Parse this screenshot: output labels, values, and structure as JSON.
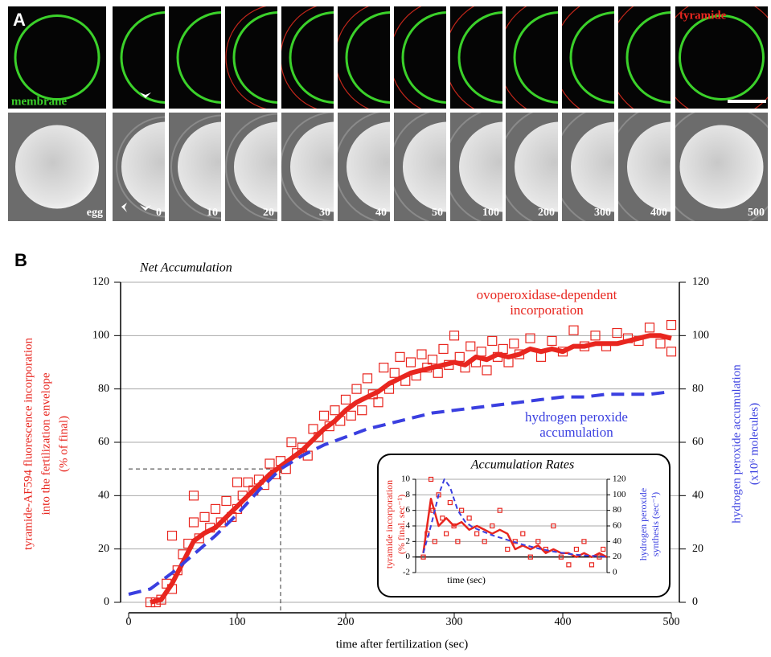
{
  "panel_a": {
    "label": "A",
    "membrane_label": "membrane",
    "tyramide_label": "tyramide",
    "time_labels": [
      "egg",
      "0",
      "10",
      "20",
      "30",
      "40",
      "50",
      "100",
      "200",
      "300",
      "400",
      "500"
    ]
  },
  "chart_data": [
    {
      "type": "line",
      "panel_label": "B",
      "title": "Net Accumulation",
      "xlabel": "time after fertilization (sec)",
      "ylabel": [
        "tyramide-AF594 fluorescence incorporation",
        "into the fertilization envelope",
        "(% of final)"
      ],
      "y2label": [
        "hydrogen peroxide accumulation",
        "(x10⁶ molecules)"
      ],
      "xlim": [
        0,
        500
      ],
      "xticks": [
        0,
        100,
        200,
        300,
        400,
        500
      ],
      "ylim": [
        0,
        120
      ],
      "yticks": [
        0,
        20,
        40,
        60,
        80,
        100,
        120
      ],
      "y2lim": [
        0,
        120
      ],
      "y2ticks": [
        0,
        20,
        40,
        60,
        80,
        100,
        120
      ],
      "grid": true,
      "reference": {
        "x": 140,
        "y": 50
      },
      "series": [
        {
          "type": "scatter",
          "color": "#e8261f",
          "x": [
            20,
            25,
            30,
            35,
            40,
            40,
            45,
            50,
            55,
            60,
            60,
            65,
            70,
            75,
            80,
            85,
            90,
            95,
            100,
            100,
            105,
            110,
            115,
            120,
            125,
            130,
            135,
            140,
            145,
            150,
            155,
            160,
            165,
            170,
            175,
            180,
            185,
            190,
            195,
            200,
            205,
            210,
            215,
            220,
            225,
            230,
            235,
            240,
            245,
            250,
            255,
            260,
            265,
            270,
            275,
            280,
            285,
            290,
            295,
            300,
            305,
            310,
            315,
            320,
            325,
            330,
            335,
            340,
            345,
            350,
            355,
            360,
            370,
            380,
            390,
            400,
            410,
            420,
            430,
            440,
            450,
            460,
            470,
            480,
            490,
            500,
            500
          ],
          "values": [
            0,
            0,
            1,
            7,
            25,
            5,
            12,
            18,
            22,
            40,
            30,
            24,
            32,
            28,
            35,
            30,
            38,
            32,
            45,
            35,
            40,
            45,
            42,
            46,
            44,
            52,
            48,
            53,
            50,
            60,
            56,
            58,
            55,
            65,
            62,
            70,
            66,
            72,
            68,
            76,
            70,
            80,
            72,
            84,
            78,
            75,
            88,
            80,
            86,
            92,
            83,
            90,
            85,
            93,
            88,
            91,
            86,
            95,
            89,
            100,
            92,
            88,
            96,
            90,
            94,
            87,
            98,
            92,
            95,
            90,
            97,
            93,
            99,
            92,
            98,
            94,
            102,
            96,
            100,
            96,
            101,
            99,
            98,
            103,
            97,
            104,
            94
          ]
        },
        {
          "type": "line",
          "name": [
            "ovoperoxidase-dependent",
            "incorporation"
          ],
          "color": "#e8261f",
          "x": [
            20,
            30,
            40,
            50,
            60,
            70,
            80,
            90,
            100,
            110,
            120,
            130,
            140,
            150,
            160,
            170,
            180,
            190,
            200,
            210,
            220,
            230,
            240,
            250,
            260,
            270,
            280,
            290,
            300,
            310,
            320,
            330,
            340,
            350,
            360,
            370,
            380,
            390,
            400,
            410,
            420,
            430,
            440,
            450,
            460,
            470,
            480,
            490,
            500
          ],
          "values": [
            0,
            1,
            7,
            15,
            23,
            26,
            28,
            32,
            36,
            40,
            44,
            48,
            51,
            54,
            57,
            61,
            65,
            68,
            72,
            75,
            77,
            79,
            82,
            84,
            86,
            87,
            88,
            89,
            90,
            89,
            92,
            91,
            93,
            92,
            93,
            95,
            94,
            95,
            94,
            96,
            96,
            97,
            97,
            97,
            98,
            99,
            100,
            100,
            99
          ]
        },
        {
          "type": "line",
          "name": [
            "hydrogen peroxide",
            "accumulation"
          ],
          "color": "#3a3fe0",
          "dashed": true,
          "axis": "y2",
          "x": [
            0,
            20,
            40,
            60,
            80,
            100,
            120,
            140,
            160,
            180,
            200,
            220,
            240,
            260,
            280,
            300,
            320,
            340,
            360,
            380,
            400,
            420,
            440,
            460,
            480,
            500
          ],
          "values": [
            3,
            5,
            11,
            18,
            25,
            33,
            42,
            50,
            55,
            59,
            62,
            65,
            67,
            69,
            71,
            72,
            73,
            74,
            75,
            76,
            77,
            77,
            78,
            78,
            78,
            79
          ]
        }
      ]
    },
    {
      "type": "line",
      "title": "Accumulation Rates",
      "xlabel": "time (sec)",
      "ylabel": [
        "tyramide incorporation",
        "(% final. sec⁻¹)"
      ],
      "y2label": [
        "hydrogen peroxide",
        "synthesis (sec⁻¹)"
      ],
      "xlim": [
        0,
        500
      ],
      "ylim": [
        -2,
        10
      ],
      "yticks": [
        -2,
        0,
        2,
        4,
        6,
        8,
        10
      ],
      "y2lim": [
        0,
        120
      ],
      "y2ticks": [
        0,
        20,
        40,
        60,
        80,
        100,
        120
      ],
      "grid": true,
      "series": [
        {
          "type": "scatter",
          "color": "#e8261f",
          "x": [
            20,
            30,
            40,
            45,
            50,
            60,
            70,
            80,
            90,
            100,
            110,
            120,
            140,
            160,
            180,
            200,
            220,
            240,
            260,
            280,
            300,
            320,
            340,
            360,
            380,
            400,
            420,
            440,
            460,
            480,
            490
          ],
          "values": [
            0,
            3,
            10,
            6,
            2,
            8,
            5,
            3,
            7,
            4,
            2,
            6,
            5,
            3,
            2,
            4,
            6,
            1,
            2,
            3,
            0,
            2,
            1,
            4,
            0,
            -1,
            1,
            2,
            -1,
            0,
            1
          ]
        },
        {
          "type": "line",
          "color": "#e8261f",
          "x": [
            20,
            40,
            60,
            80,
            100,
            120,
            140,
            160,
            180,
            200,
            220,
            240,
            260,
            280,
            300,
            320,
            340,
            360,
            380,
            400,
            420,
            440,
            460,
            480,
            500
          ],
          "values": [
            0.5,
            7.5,
            4,
            5,
            4,
            4.5,
            3.5,
            4,
            3.5,
            3,
            3.5,
            3,
            1,
            1.5,
            1,
            1.5,
            0.5,
            1,
            0.5,
            0.5,
            0,
            0.5,
            0,
            0.5,
            0
          ]
        },
        {
          "type": "line",
          "color": "#3a3fe0",
          "dashed": true,
          "axis": "y2",
          "x": [
            20,
            40,
            60,
            75,
            90,
            110,
            130,
            150,
            200,
            240,
            280,
            320,
            360,
            400,
            440,
            480,
            500
          ],
          "values": [
            25,
            60,
            100,
            120,
            110,
            80,
            65,
            58,
            48,
            42,
            36,
            31,
            27,
            24,
            22,
            21,
            20
          ]
        }
      ]
    }
  ]
}
